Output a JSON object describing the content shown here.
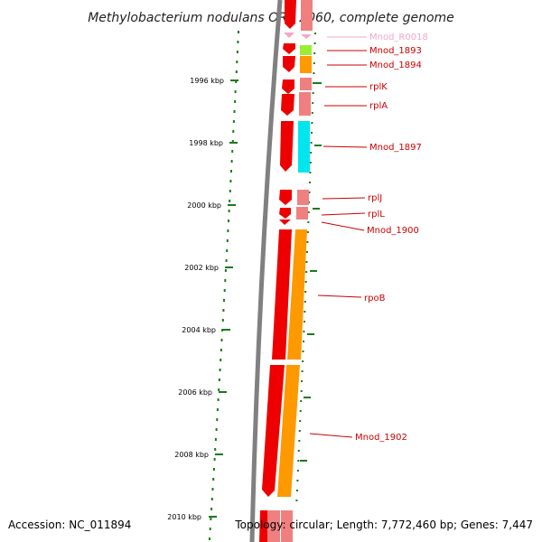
{
  "title": "Methylobacterium nodulans ORS 2060, complete genome",
  "accession_text": "Accession: NC_011894",
  "topology_text": "Topology: circular; Length: 7,772,460 bp; Genes: 7,447",
  "ticks": [
    "1996 kbp",
    "1998 kbp",
    "2000 kbp",
    "2002 kbp",
    "2004 kbp",
    "2006 kbp",
    "2008 kbp",
    "2010 kbp"
  ],
  "genes": [
    {
      "name": "Mnod_R0018",
      "color": "#f4a6c8"
    },
    {
      "name": "Mnod_1893",
      "color": "#cc0000"
    },
    {
      "name": "Mnod_1894",
      "color": "#cc0000"
    },
    {
      "name": "rplK",
      "color": "#cc0000"
    },
    {
      "name": "rplA",
      "color": "#cc0000"
    },
    {
      "name": "Mnod_1897",
      "color": "#cc0000"
    },
    {
      "name": "rplJ",
      "color": "#cc0000"
    },
    {
      "name": "rplL",
      "color": "#cc0000"
    },
    {
      "name": "Mnod_1900",
      "color": "#cc0000"
    },
    {
      "name": "rpoB",
      "color": "#cc0000"
    },
    {
      "name": "Mnod_1902",
      "color": "#cc0000"
    }
  ],
  "colors": {
    "backbone": "#808080",
    "cds": "#ee0000",
    "cds_light": "#f08080",
    "rna": "#f4a6c8",
    "cog_green": "#99ee33",
    "cog_orange": "#ff9900",
    "cog_cyan": "#00e5ee",
    "tick": "#1a7a1a"
  }
}
